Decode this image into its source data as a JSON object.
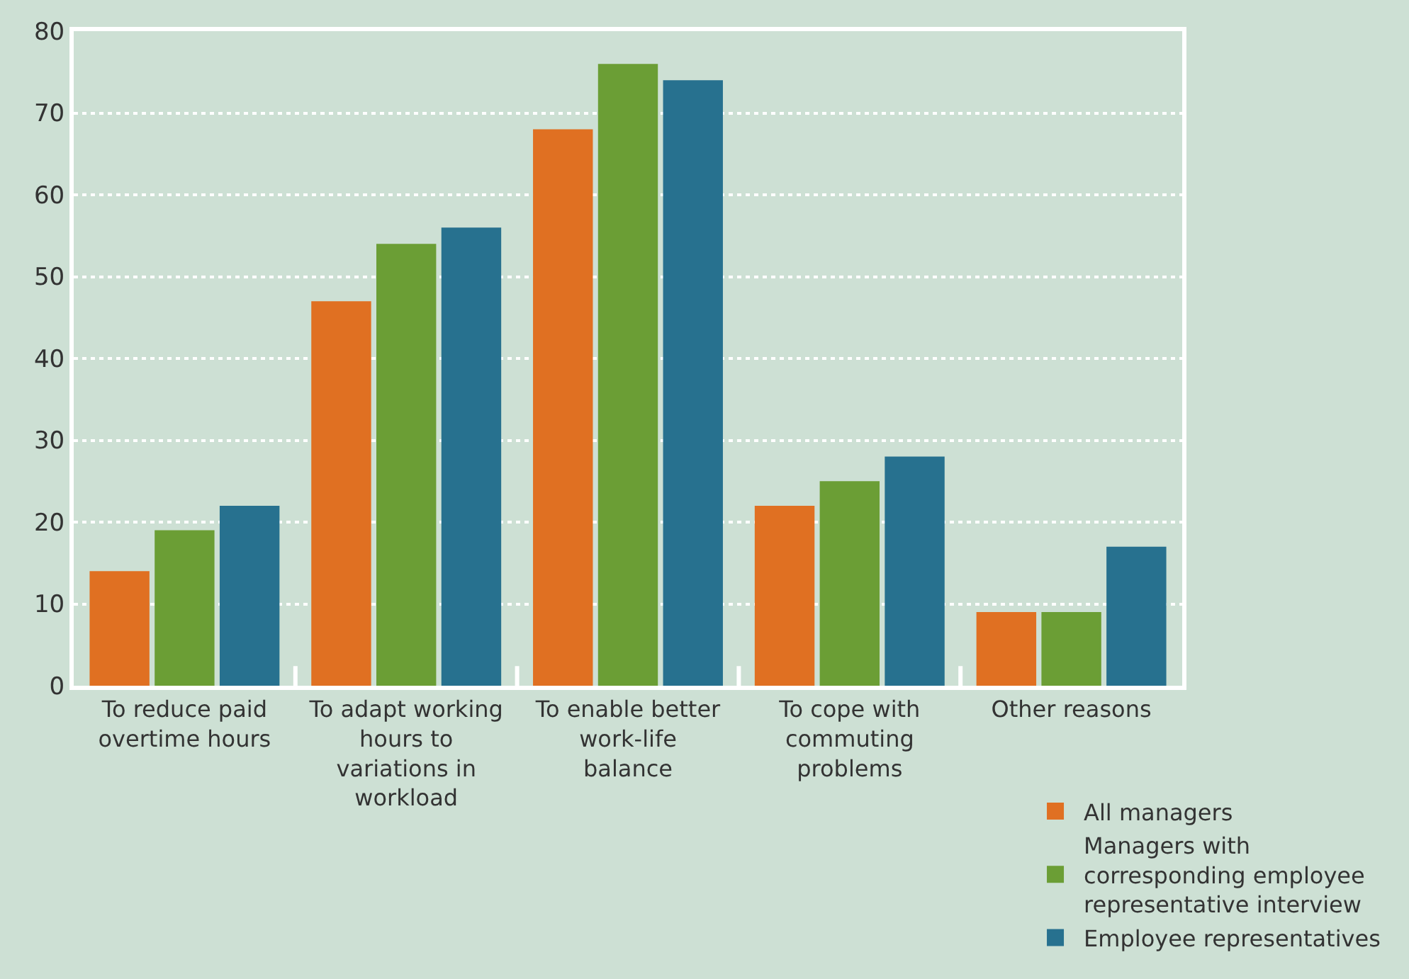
{
  "chart_data": {
    "type": "bar",
    "categories": [
      "To reduce paid overtime hours",
      "To adapt working hours to variations in workload",
      "To enable better work-life balance",
      "To cope with commuting problems",
      "Other reasons"
    ],
    "series": [
      {
        "name": "All managers",
        "color": "#e07022",
        "values": [
          14,
          47,
          68,
          22,
          9
        ]
      },
      {
        "name": "Managers with corresponding employee representative interview",
        "color": "#6b9e35",
        "values": [
          19,
          54,
          76,
          25,
          9
        ]
      },
      {
        "name": "Employee representatives",
        "color": "#27718f",
        "values": [
          22,
          56,
          74,
          28,
          17
        ]
      }
    ],
    "ylim": [
      0,
      80
    ],
    "yticks": [
      0,
      10,
      20,
      30,
      40,
      50,
      60,
      70,
      80
    ],
    "grid": "y",
    "legend": "bottom right"
  }
}
